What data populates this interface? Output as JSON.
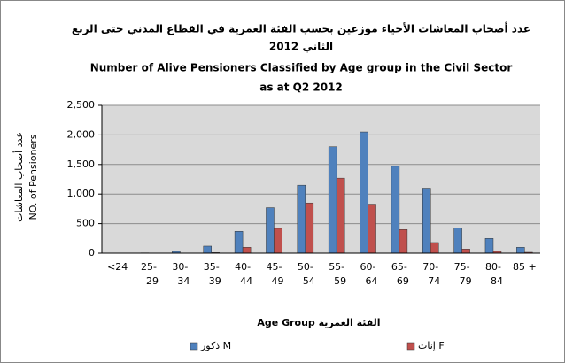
{
  "chart_data": {
    "type": "bar",
    "title_ar": [
      "عدد أصحاب المعاشات الأحياء موزعين بحسب الفئة العمرية في القطاع المدني حتى الربع",
      "الثاني 2012"
    ],
    "title": [
      "Number of Alive Pensioners Classified by Age group  in the Civil Sector",
      "as at Q2 2012"
    ],
    "y_label": [
      "عدد أصحاب المعاشات",
      "NO. of Pensioners"
    ],
    "x_label": "Age Group  الفئة العمرية",
    "categories": [
      "<24",
      "25-29",
      "30-34",
      "35-39",
      "40-44",
      "45-49",
      "50-54",
      "55-59",
      "60-64",
      "65-69",
      "70-74",
      "75-79",
      "80-84",
      "85 +"
    ],
    "series": [
      {
        "name": "ذكور M",
        "color": "#4f81bd",
        "values": [
          0,
          5,
          30,
          120,
          370,
          770,
          1150,
          1800,
          2050,
          1470,
          1100,
          430,
          250,
          100
        ]
      },
      {
        "name": "إناث F",
        "color": "#c0504d",
        "values": [
          0,
          0,
          0,
          10,
          100,
          420,
          850,
          1270,
          830,
          400,
          180,
          70,
          30,
          15
        ]
      }
    ],
    "ylim": [
      0,
      2500
    ],
    "yticks": [
      0,
      500,
      {
        "value": 1000,
        "label": "1,000"
      },
      {
        "value": 1500,
        "label": "1,500"
      },
      {
        "value": 2000,
        "label": "2,000"
      },
      {
        "value": 2500,
        "label": "2,500"
      }
    ],
    "grid": true
  }
}
